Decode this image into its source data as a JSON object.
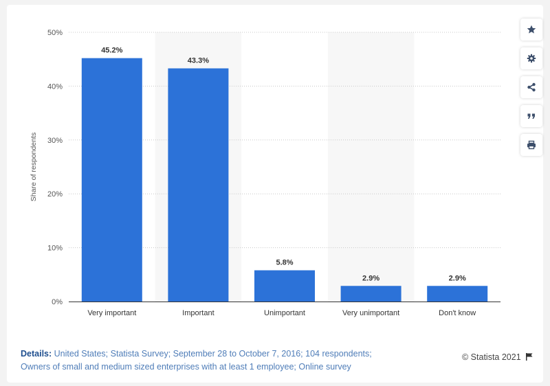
{
  "chart_data": {
    "type": "bar",
    "categories": [
      "Very important",
      "Important",
      "Unimportant",
      "Very unimportant",
      "Don't know"
    ],
    "values": [
      45.2,
      43.3,
      5.8,
      2.9,
      2.9
    ],
    "value_labels": [
      "45.2%",
      "43.3%",
      "5.8%",
      "2.9%",
      "2.9%"
    ],
    "ylabel": "Share of respondents",
    "ylim": [
      0,
      50
    ],
    "yticks": [
      0,
      10,
      20,
      30,
      40,
      50
    ],
    "ytick_labels": [
      "0%",
      "10%",
      "20%",
      "30%",
      "40%",
      "50%"
    ],
    "grid": true,
    "bar_color": "#2c72d8",
    "alt_band_color": "#f7f7f7"
  },
  "toolbar": {
    "icons": [
      "star-icon",
      "gear-icon",
      "share-icon",
      "quote-icon",
      "print-icon"
    ]
  },
  "footer": {
    "details_label": "Details:",
    "details_line1": "United States; Statista Survey; September 28 to October 7, 2016; 104 respondents;",
    "details_line2": "Owners of small and medium sized enterprises with at least 1 employee; Online survey",
    "credit": "© Statista 2021"
  }
}
